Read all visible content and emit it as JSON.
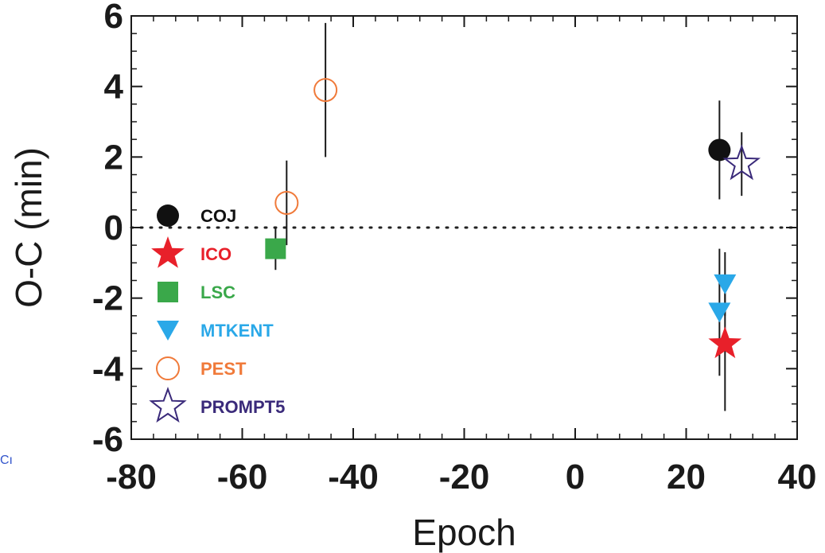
{
  "chart_data": {
    "type": "scatter",
    "title": "",
    "xlabel": "Epoch",
    "ylabel": "O-C (min)",
    "xlim": [
      -80,
      40
    ],
    "ylim": [
      -6,
      6
    ],
    "xticks": [
      -80,
      -60,
      -40,
      -20,
      0,
      20,
      40
    ],
    "yticks": [
      -6,
      -4,
      -2,
      0,
      2,
      4,
      6
    ],
    "reference_line": {
      "y": 0,
      "style": "dotted"
    },
    "legend_position": "left",
    "series": [
      {
        "name": "COJ",
        "color": "#111111",
        "marker": "filled-circle",
        "points": [
          {
            "x": 26,
            "y": 2.2,
            "err": 1.4
          }
        ]
      },
      {
        "name": "ICO",
        "color": "#e8202a",
        "marker": "filled-star",
        "points": [
          {
            "x": 27,
            "y": -3.3,
            "err": 1.9
          }
        ]
      },
      {
        "name": "LSC",
        "color": "#3aa84a",
        "marker": "filled-square",
        "points": [
          {
            "x": -54,
            "y": -0.6,
            "err": 0.6
          }
        ]
      },
      {
        "name": "MTKENT",
        "color": "#2aa8e8",
        "marker": "filled-triangle-down",
        "points": [
          {
            "x": 27,
            "y": -1.6,
            "err": 0.9
          },
          {
            "x": 26,
            "y": -2.4,
            "err": 1.8
          }
        ]
      },
      {
        "name": "PEST",
        "color": "#f07a3a",
        "marker": "open-circle",
        "points": [
          {
            "x": -52,
            "y": 0.7,
            "err": 1.2
          },
          {
            "x": -45,
            "y": 3.9,
            "err": 1.9
          }
        ]
      },
      {
        "name": "PROMPT5",
        "color": "#3a2a7a",
        "marker": "open-star",
        "points": [
          {
            "x": 30,
            "y": 1.8,
            "err": 0.9
          }
        ]
      }
    ]
  },
  "stray_text": "Cı"
}
